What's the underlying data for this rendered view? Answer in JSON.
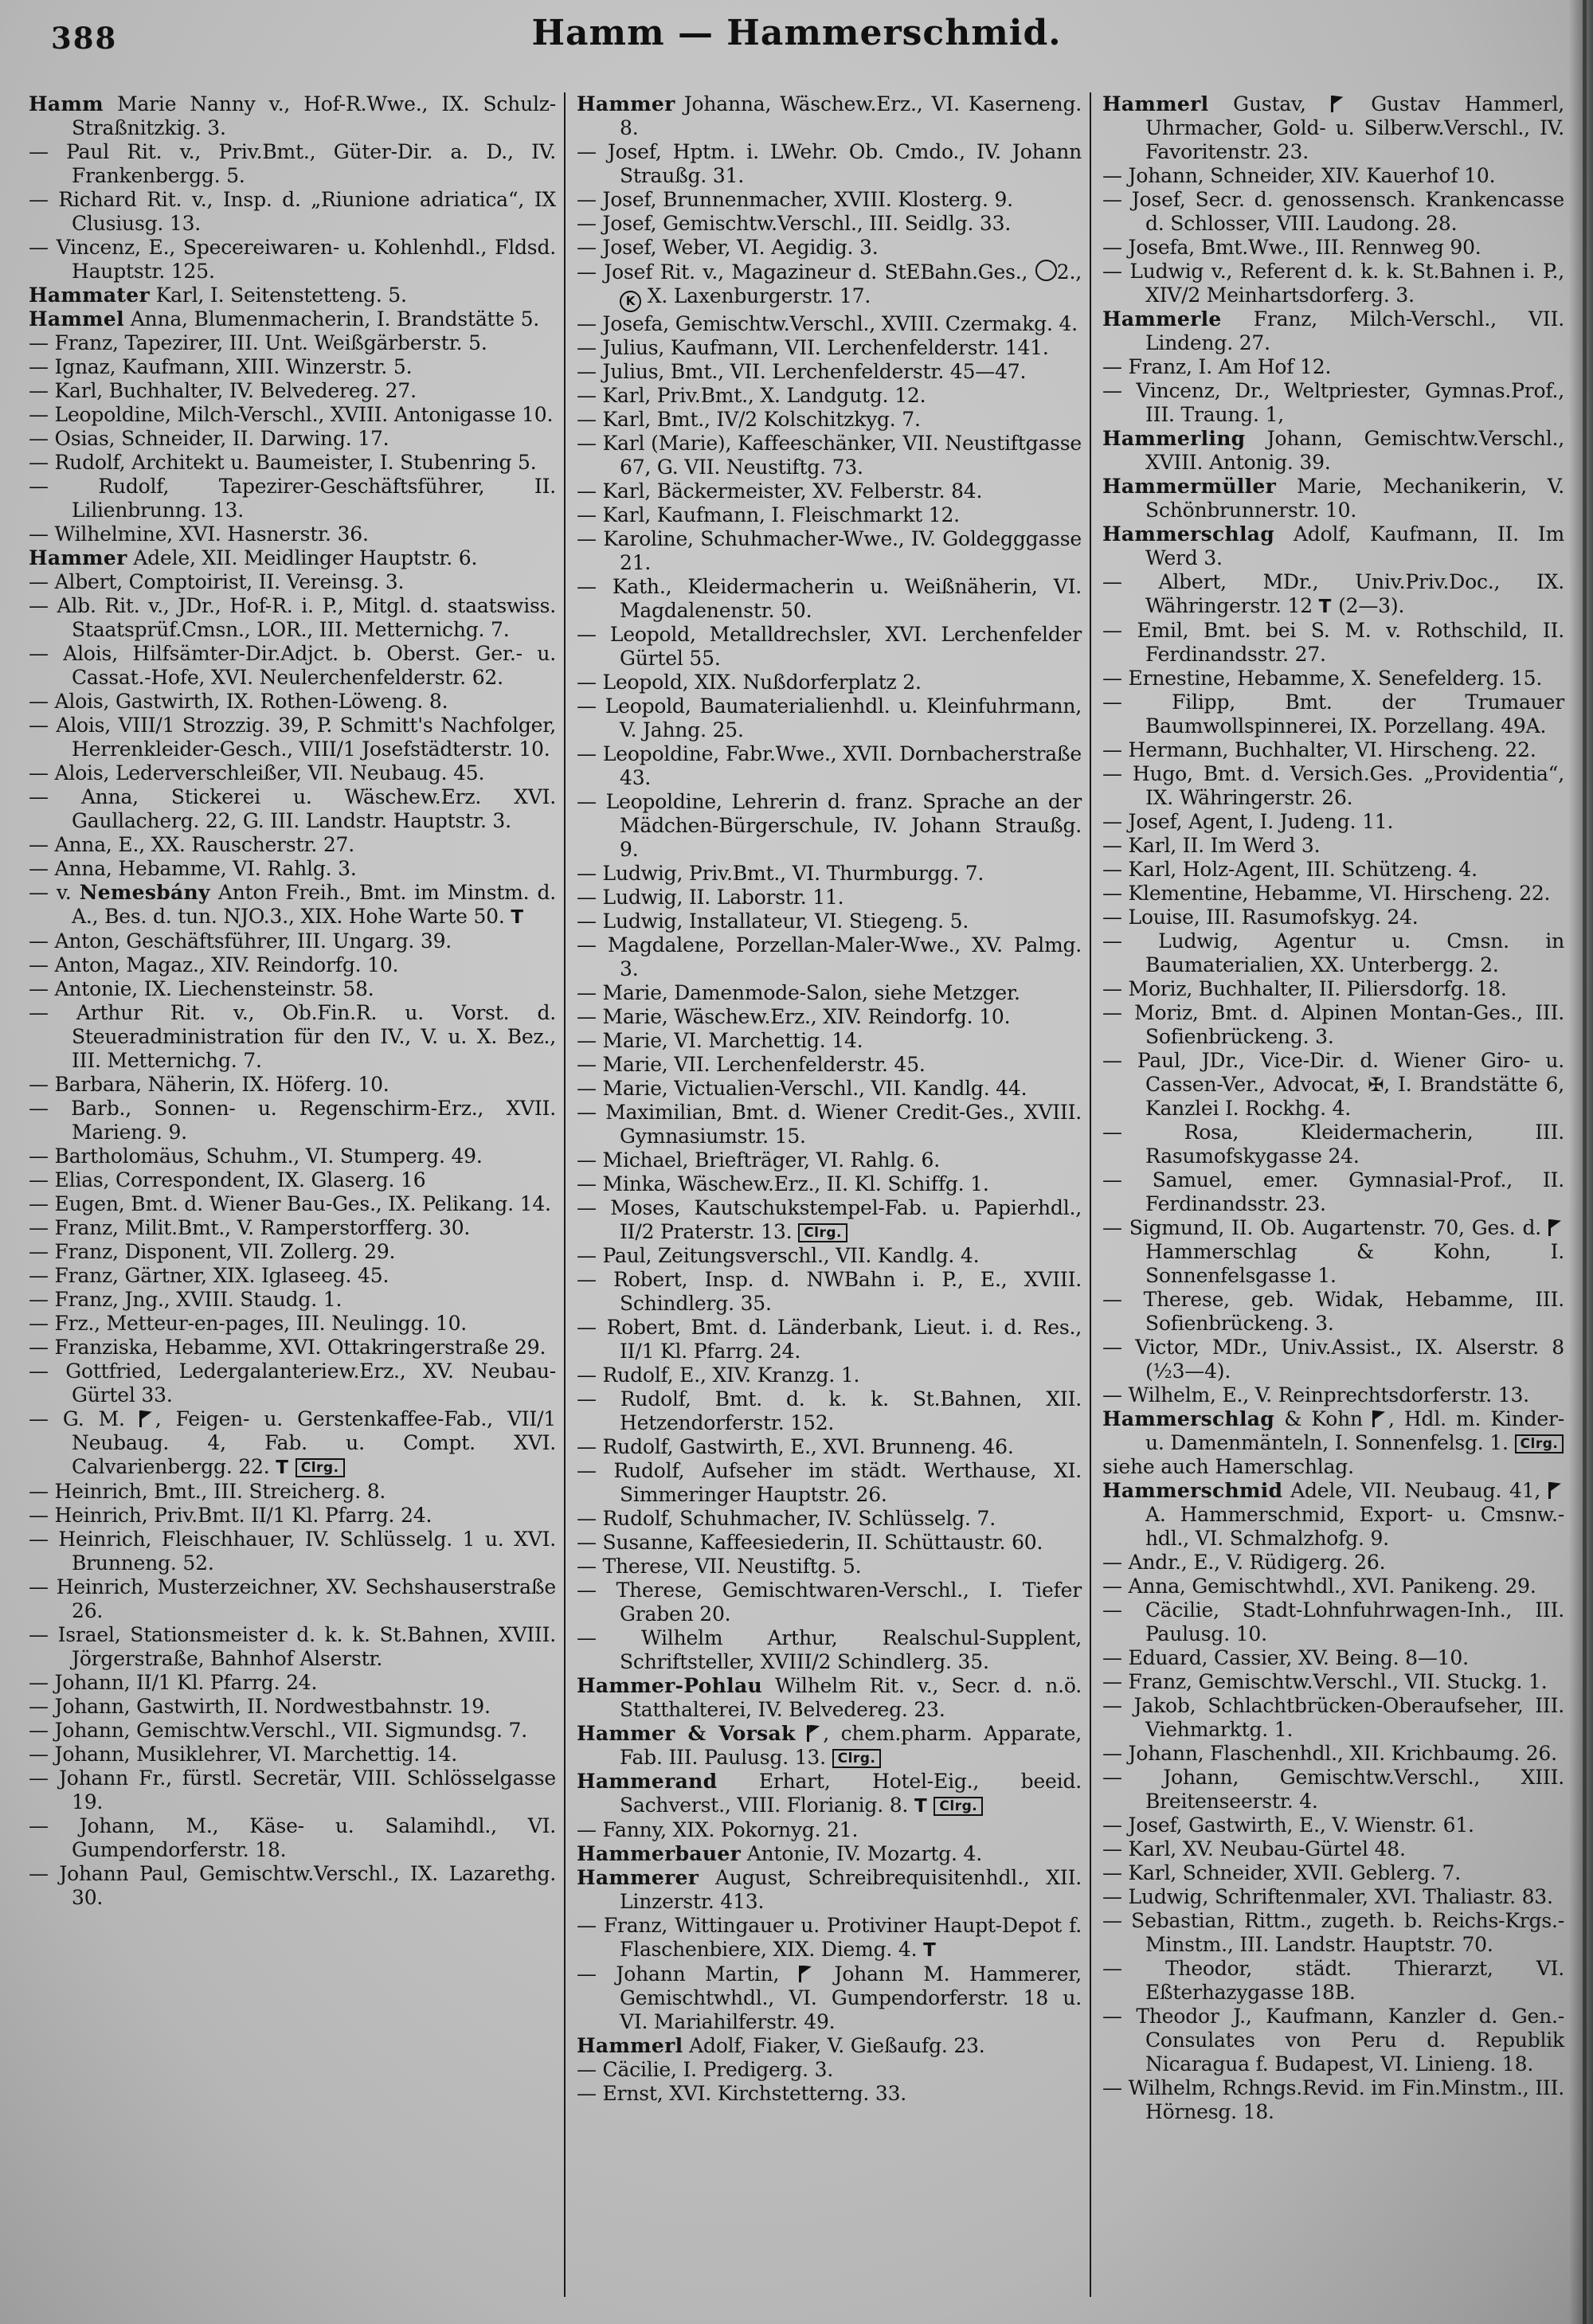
{
  "page": {
    "number": "388",
    "title": "Hamm — Hammerschmid."
  },
  "icons": {
    "telephone": "T",
    "clearing_badge": "Clrg.",
    "registered_firm_flag": "black pennant flag",
    "order_circle_k": "K in circle",
    "order_circle": "empty circle",
    "cross_decoration": "✠"
  },
  "columns": [
    {
      "entries": [
        {
          "lead": "Hamm",
          "text": "Marie Nanny v., Hof-R.Wwe., IX. Schulz-Straßnitzkig. 3."
        },
        {
          "dash": true,
          "text": "Paul Rit. v., Priv.Bmt., Güter-Dir. a. D., IV. Frankenbergg. 5."
        },
        {
          "dash": true,
          "text": "Richard Rit. v., Insp. d. „Riunione adriatica“, IX Clusiusg. 13."
        },
        {
          "dash": true,
          "text": "Vincenz, E., Specereiwaren- u. Kohlenhdl., Fldsd. Hauptstr. 125."
        },
        {
          "lead": "Hammater",
          "text": "Karl, I. Seitenstetteng. 5."
        },
        {
          "lead": "Hammel",
          "text": "Anna, Blumenmacherin, I. Brandstätte 5."
        },
        {
          "dash": true,
          "text": "Franz, Tapezirer, III. Unt. Weißgärberstr. 5."
        },
        {
          "dash": true,
          "text": "Ignaz, Kaufmann, XIII. Winzerstr. 5."
        },
        {
          "dash": true,
          "text": "Karl, Buchhalter, IV. Belvedereg. 27."
        },
        {
          "dash": true,
          "text": "Leopoldine, Milch-Verschl., XVIII. Antonigasse 10."
        },
        {
          "dash": true,
          "text": "Osias, Schneider, II. Darwing. 17."
        },
        {
          "dash": true,
          "text": "Rudolf, Architekt u. Baumeister, I. Stubenring 5."
        },
        {
          "dash": true,
          "text": "Rudolf, Tapezirer-Geschäftsführer, II. Lilienbrunng. 13."
        },
        {
          "dash": true,
          "text": "Wilhelmine, XVI. Hasnerstr. 36."
        },
        {
          "lead": "Hammer",
          "text": "Adele, XII. Meidlinger Hauptstr. 6."
        },
        {
          "dash": true,
          "text": "Albert, Comptoirist, II. Vereinsg. 3."
        },
        {
          "dash": true,
          "text": "Alb. Rit. v., JDr., Hof-R. i. P., Mitgl. d. staatswiss. Staatsprüf.Cmsn., LOR., III. Metternichg. 7."
        },
        {
          "dash": true,
          "text": "Alois, Hilfsämter-Dir.Adjct. b. Oberst. Ger.- u. Cassat.-Hofe, XVI. Neulerchenfelderstr. 62."
        },
        {
          "dash": true,
          "text": "Alois, Gastwirth, IX. Rothen-Löweng. 8."
        },
        {
          "dash": true,
          "text": "Alois, VIII/1 Strozzig. 39, P. Schmitt's Nachfolger, Herrenkleider-Gesch., VIII/1 Josefstädterstr. 10."
        },
        {
          "dash": true,
          "text": "Alois, Lederverschleißer, VII. Neubaug. 45."
        },
        {
          "dash": true,
          "text": "Anna, Stickerei u. Wäschew.Erz. XVI. Gaullacherg. 22, G. III. Landstr. Hauptstr. 3."
        },
        {
          "dash": true,
          "text": "Anna, E., XX. Rauscherstr. 27."
        },
        {
          "dash": true,
          "text": "Anna, Hebamme, VI. Rahlg. 3."
        },
        {
          "dash": true,
          "pre": "v. ",
          "lead": "Nemesbány",
          "text": "Anton Freih., Bmt. im Minstm. d. A., Bes. d. tun. NJO.3., XIX. Hohe Warte 50. {T}"
        },
        {
          "dash": true,
          "text": "Anton, Geschäftsführer, III. Ungarg. 39."
        },
        {
          "dash": true,
          "text": "Anton, Magaz., XIV. Reindorfg. 10."
        },
        {
          "dash": true,
          "text": "Antonie, IX. Liechensteinstr. 58."
        },
        {
          "dash": true,
          "text": "Arthur Rit. v., Ob.Fin.R. u. Vorst. d. Steueradministration für den IV., V. u. X. Bez., III. Metternichg. 7."
        },
        {
          "dash": true,
          "text": "Barbara, Näherin, IX. Höferg. 10."
        },
        {
          "dash": true,
          "text": "Barb., Sonnen- u. Regenschirm-Erz., XVII. Marieng. 9."
        },
        {
          "dash": true,
          "text": "Bartholomäus, Schuhm., VI. Stumperg. 49."
        },
        {
          "dash": true,
          "text": "Elias, Correspondent, IX. Glaserg. 16"
        },
        {
          "dash": true,
          "text": "Eugen, Bmt. d. Wiener Bau-Ges., IX. Pelikang. 14."
        },
        {
          "dash": true,
          "text": "Franz, Milit.Bmt., V. Ramperstorfferg. 30."
        },
        {
          "dash": true,
          "text": "Franz, Disponent, VII. Zollerg. 29."
        },
        {
          "dash": true,
          "text": "Franz, Gärtner, XIX. Iglaseeg. 45."
        },
        {
          "dash": true,
          "text": "Franz, Jng., XVIII. Staudg. 1."
        },
        {
          "dash": true,
          "text": "Frz., Metteur-en-pages, III. Neulingg. 10."
        },
        {
          "dash": true,
          "text": "Franziska, Hebamme, XVI. Ottakringerstraße 29."
        },
        {
          "dash": true,
          "text": "Gottfried, Ledergalanteriew.Erz., XV. Neubau-Gürtel 33."
        },
        {
          "dash": true,
          "text": "G. M. {F}, Feigen- u. Gerstenkaffee-Fab., VII/1 Neubaug. 4, Fab. u. Compt. XVI. Calvarienbergg. 22. {T} {C}"
        },
        {
          "dash": true,
          "text": "Heinrich, Bmt., III. Streicherg. 8."
        },
        {
          "dash": true,
          "text": "Heinrich, Priv.Bmt. II/1 Kl. Pfarrg. 24."
        },
        {
          "dash": true,
          "text": "Heinrich, Fleischhauer, IV. Schlüsselg. 1 u. XVI. Brunneng. 52."
        },
        {
          "dash": true,
          "text": "Heinrich, Musterzeichner, XV. Sechshauserstraße 26."
        },
        {
          "dash": true,
          "text": "Israel, Stationsmeister d. k. k. St.Bahnen, XVIII. Jörgerstraße, Bahnhof Alserstr."
        },
        {
          "dash": true,
          "text": "Johann, II/1 Kl. Pfarrg. 24."
        },
        {
          "dash": true,
          "text": "Johann, Gastwirth, II. Nordwestbahnstr. 19."
        },
        {
          "dash": true,
          "text": "Johann, Gemischtw.Verschl., VII. Sigmundsg. 7."
        },
        {
          "dash": true,
          "text": "Johann, Musiklehrer, VI. Marchettig. 14."
        },
        {
          "dash": true,
          "text": "Johann Fr., fürstl. Secretär, VIII. Schlösselgasse 19."
        },
        {
          "dash": true,
          "text": "Johann, M., Käse- u. Salamihdl., VI. Gumpendorferstr. 18."
        },
        {
          "dash": true,
          "text": "Johann Paul, Gemischtw.Verschl., IX. Lazarethg. 30."
        }
      ]
    },
    {
      "entries": [
        {
          "lead": "Hammer",
          "text": "Johanna, Wäschew.Erz., VI. Kaserneng. 8."
        },
        {
          "dash": true,
          "text": "Josef, Hptm. i. LWehr. Ob. Cmdo., IV. Johann Straußg. 31."
        },
        {
          "dash": true,
          "text": "Josef, Brunnenmacher, XVIII. Klosterg. 9."
        },
        {
          "dash": true,
          "text": "Josef, Gemischtw.Verschl., III. Seidlg. 33."
        },
        {
          "dash": true,
          "text": "Josef, Weber, VI. Aegidig. 3."
        },
        {
          "dash": true,
          "text": "Josef Rit. v., Magazineur d. StEBahn.Ges., {O}2., {K} X. Laxenburgerstr. 17."
        },
        {
          "dash": true,
          "text": "Josefa, Gemischtw.Verschl., XVIII. Czermakg. 4."
        },
        {
          "dash": true,
          "text": "Julius, Kaufmann, VII. Lerchenfelderstr. 141."
        },
        {
          "dash": true,
          "text": "Julius, Bmt., VII. Lerchenfelderstr. 45—47."
        },
        {
          "dash": true,
          "text": "Karl, Priv.Bmt., X. Landgutg. 12."
        },
        {
          "dash": true,
          "text": "Karl, Bmt., IV/2 Kolschitzkyg. 7."
        },
        {
          "dash": true,
          "text": "Karl (Marie), Kaffeeschänker, VII. Neustiftgasse 67, G. VII. Neustiftg. 73."
        },
        {
          "dash": true,
          "text": "Karl, Bäckermeister, XV. Felberstr. 84."
        },
        {
          "dash": true,
          "text": "Karl, Kaufmann, I. Fleischmarkt 12."
        },
        {
          "dash": true,
          "text": "Karoline, Schuhmacher-Wwe., IV. Goldegggasse 21."
        },
        {
          "dash": true,
          "text": "Kath., Kleidermacherin u. Weißnäherin, VI. Magdalenenstr. 50."
        },
        {
          "dash": true,
          "text": "Leopold, Metalldrechsler, XVI. Lerchenfelder Gürtel 55."
        },
        {
          "dash": true,
          "text": "Leopold, XIX. Nußdorferplatz 2."
        },
        {
          "dash": true,
          "text": "Leopold, Baumaterialienhdl. u. Kleinfuhrmann, V. Jahng. 25."
        },
        {
          "dash": true,
          "text": "Leopoldine, Fabr.Wwe., XVII. Dornbacherstraße 43."
        },
        {
          "dash": true,
          "text": "Leopoldine, Lehrerin d. franz. Sprache an der Mädchen-Bürgerschule, IV. Johann Straußg. 9."
        },
        {
          "dash": true,
          "text": "Ludwig, Priv.Bmt., VI. Thurmburgg. 7."
        },
        {
          "dash": true,
          "text": "Ludwig, II. Laborstr. 11."
        },
        {
          "dash": true,
          "text": "Ludwig, Installateur, VI. Stiegeng. 5."
        },
        {
          "dash": true,
          "text": "Magdalene, Porzellan-Maler-Wwe., XV. Palmg. 3."
        },
        {
          "dash": true,
          "text": "Marie, Damenmode-Salon, siehe Metzger."
        },
        {
          "dash": true,
          "text": "Marie, Wäschew.Erz., XIV. Reindorfg. 10."
        },
        {
          "dash": true,
          "text": "Marie, VI. Marchettig. 14."
        },
        {
          "dash": true,
          "text": "Marie, VII. Lerchenfelderstr. 45."
        },
        {
          "dash": true,
          "text": "Marie, Victualien-Verschl., VII. Kandlg. 44."
        },
        {
          "dash": true,
          "text": "Maximilian, Bmt. d. Wiener Credit-Ges., XVIII. Gymnasiumstr. 15."
        },
        {
          "dash": true,
          "text": "Michael, Briefträger, VI. Rahlg. 6."
        },
        {
          "dash": true,
          "text": "Minka, Wäschew.Erz., II. Kl. Schiffg. 1."
        },
        {
          "dash": true,
          "text": "Moses, Kautschukstempel-Fab. u. Papierhdl., II/2 Praterstr. 13. {C}"
        },
        {
          "dash": true,
          "text": "Paul, Zeitungsverschl., VII. Kandlg. 4."
        },
        {
          "dash": true,
          "text": "Robert, Insp. d. NWBahn i. P., E., XVIII. Schindlerg. 35."
        },
        {
          "dash": true,
          "text": "Robert, Bmt. d. Länderbank, Lieut. i. d. Res., II/1 Kl. Pfarrg. 24."
        },
        {
          "dash": true,
          "text": "Rudolf, E., XIV. Kranzg. 1."
        },
        {
          "dash": true,
          "text": "Rudolf, Bmt. d. k. k. St.Bahnen, XII. Hetzendorferstr. 152."
        },
        {
          "dash": true,
          "text": "Rudolf, Gastwirth, E., XVI. Brunneng. 46."
        },
        {
          "dash": true,
          "text": "Rudolf, Aufseher im städt. Werthause, XI. Simmeringer Hauptstr. 26."
        },
        {
          "dash": true,
          "text": "Rudolf, Schuhmacher, IV. Schlüsselg. 7."
        },
        {
          "dash": true,
          "text": "Susanne, Kaffeesiederin, II. Schüttaustr. 60."
        },
        {
          "dash": true,
          "text": "Therese, VII. Neustiftg. 5."
        },
        {
          "dash": true,
          "text": "Therese, Gemischtwaren-Verschl., I. Tiefer Graben 20."
        },
        {
          "dash": true,
          "text": "Wilhelm Arthur, Realschul-Supplent, Schriftsteller, XVIII/2 Schindlerg. 35."
        },
        {
          "lead": "Hammer-Pohlau",
          "text": "Wilhelm Rit. v., Secr. d. n.ö. Statthalterei, IV. Belvedereg. 23."
        },
        {
          "lead": "Hammer & Vorsak",
          "text": "{F}, chem.pharm. Apparate, Fab. III. Paulusg. 13. {C}"
        },
        {
          "lead": "Hammerand",
          "text": "Erhart, Hotel-Eig., beeid. Sachverst., VIII. Florianig. 8. {T} {C}"
        },
        {
          "dash": true,
          "text": "Fanny, XIX. Pokornyg. 21."
        },
        {
          "lead": "Hammerbauer",
          "text": "Antonie, IV. Mozartg. 4."
        },
        {
          "lead": "Hammerer",
          "text": "August, Schreibrequisitenhdl., XII. Linzerstr. 413."
        },
        {
          "dash": true,
          "text": "Franz, Wittingauer u. Protiviner Haupt-Depot f. Flaschenbiere, XIX. Diemg. 4. {T}"
        },
        {
          "dash": true,
          "text": "Johann Martin, {F} Johann M. Hammerer, Gemischtwhdl., VI. Gumpendorferstr. 18 u. VI. Mariahilferstr. 49."
        },
        {
          "lead": "Hammerl",
          "text": "Adolf, Fiaker, V. Gießaufg. 23."
        },
        {
          "dash": true,
          "text": "Cäcilie, I. Predigerg. 3."
        },
        {
          "dash": true,
          "text": "Ernst, XVI. Kirchstetterng. 33."
        }
      ]
    },
    {
      "entries": [
        {
          "lead": "Hammerl",
          "text": "Gustav, {F} Gustav Hammerl, Uhrmacher, Gold- u. Silberw.Verschl., IV. Favoritenstr. 23."
        },
        {
          "dash": true,
          "text": "Johann, Schneider, XIV. Kauerhof 10."
        },
        {
          "dash": true,
          "text": "Josef, Secr. d. genossensch. Krankencasse d. Schlosser, VIII. Laudong. 28."
        },
        {
          "dash": true,
          "text": "Josefa, Bmt.Wwe., III. Rennweg 90."
        },
        {
          "dash": true,
          "text": "Ludwig v., Referent d. k. k. St.Bahnen i. P., XIV/2 Meinhartsdorferg. 3."
        },
        {
          "lead": "Hammerle",
          "text": "Franz, Milch-Verschl., VII. Lindeng. 27."
        },
        {
          "dash": true,
          "text": "Franz, I. Am Hof 12."
        },
        {
          "dash": true,
          "text": "Vincenz, Dr., Weltpriester, Gymnas.Prof., III. Traung. 1,"
        },
        {
          "lead": "Hammerling",
          "text": "Johann, Gemischtw.Verschl., XVIII. Antonig. 39."
        },
        {
          "lead": "Hammermüller",
          "text": "Marie, Mechanikerin, V. Schönbrunnerstr. 10."
        },
        {
          "lead": "Hammerschlag",
          "text": "Adolf, Kaufmann, II. Im Werd 3."
        },
        {
          "dash": true,
          "text": "Albert, MDr., Univ.Priv.Doc., IX. Währingerstr. 12 {T} (2—3)."
        },
        {
          "dash": true,
          "text": "Emil, Bmt. bei S. M. v. Rothschild, II. Ferdinandsstr. 27."
        },
        {
          "dash": true,
          "text": "Ernestine, Hebamme, X. Senefelderg. 15."
        },
        {
          "dash": true,
          "text": "Filipp, Bmt. der Trumauer Baumwollspinnerei, IX. Porzellang. 49A."
        },
        {
          "dash": true,
          "text": "Hermann, Buchhalter, VI. Hirscheng. 22."
        },
        {
          "dash": true,
          "text": "Hugo, Bmt. d. Versich.Ges. „Providentia“, IX. Währingerstr. 26."
        },
        {
          "dash": true,
          "text": "Josef, Agent, I. Judeng. 11."
        },
        {
          "dash": true,
          "text": "Karl, II. Im Werd 3."
        },
        {
          "dash": true,
          "text": "Karl, Holz-Agent, III. Schützeng. 4."
        },
        {
          "dash": true,
          "text": "Klementine, Hebamme, VI. Hirscheng. 22."
        },
        {
          "dash": true,
          "text": "Louise, III. Rasumofskyg. 24."
        },
        {
          "dash": true,
          "text": "Ludwig, Agentur u. Cmsn. in Baumaterialien, XX. Unterbergg. 2."
        },
        {
          "dash": true,
          "text": "Moriz, Buchhalter, II. Piliersdorfg. 18."
        },
        {
          "dash": true,
          "text": "Moriz, Bmt. d. Alpinen Montan-Ges., III. Sofienbrückeng. 3."
        },
        {
          "dash": true,
          "text": "Paul, JDr., Vice-Dir. d. Wiener Giro- u. Cassen-Ver., Advocat, {X}, I. Brandstätte 6, Kanzlei I. Rockhg. 4."
        },
        {
          "dash": true,
          "text": "Rosa, Kleidermacherin, III. Rasumofskygasse 24."
        },
        {
          "dash": true,
          "text": "Samuel, emer. Gymnasial-Prof., II. Ferdinandsstr. 23."
        },
        {
          "dash": true,
          "text": "Sigmund, II. Ob. Augartenstr. 70, Ges. d. {F} Hammerschlag & Kohn, I. Sonnenfelsgasse 1."
        },
        {
          "dash": true,
          "text": "Therese, geb. Widak, Hebamme, III. Sofienbrückeng. 3."
        },
        {
          "dash": true,
          "text": "Victor, MDr., Univ.Assist., IX. Alserstr. 8 (½3—4)."
        },
        {
          "dash": true,
          "text": "Wilhelm, E., V. Reinprechtsdorferstr. 13."
        },
        {
          "lead": "Hammerschlag",
          "text": "& Kohn {F}, Hdl. m. Kinder- u. Damenmänteln, I. Sonnenfelsg. 1. {C}"
        },
        {
          "text": "siehe auch Hamerschlag."
        },
        {
          "lead": "Hammerschmid",
          "text": "Adele, VII. Neubaug. 41, {F} A. Hammerschmid, Export- u. Cmsnw.-hdl., VI. Schmalzhofg. 9."
        },
        {
          "dash": true,
          "text": "Andr., E., V. Rüdigerg. 26."
        },
        {
          "dash": true,
          "text": "Anna, Gemischtwhdl., XVI. Panikeng. 29."
        },
        {
          "dash": true,
          "text": "Cäcilie, Stadt-Lohnfuhrwagen-Inh., III. Paulusg. 10."
        },
        {
          "dash": true,
          "text": "Eduard, Cassier, XV. Being. 8—10."
        },
        {
          "dash": true,
          "text": "Franz, Gemischtw.Verschl., VII. Stuckg. 1."
        },
        {
          "dash": true,
          "text": "Jakob, Schlachtbrücken-Oberaufseher, III. Viehmarktg. 1."
        },
        {
          "dash": true,
          "text": "Johann, Flaschenhdl., XII. Krichbaumg. 26."
        },
        {
          "dash": true,
          "text": "Johann, Gemischtw.Verschl., XIII. Breitenseerstr. 4."
        },
        {
          "dash": true,
          "text": "Josef, Gastwirth, E., V. Wienstr. 61."
        },
        {
          "dash": true,
          "text": "Karl, XV. Neubau-Gürtel 48."
        },
        {
          "dash": true,
          "text": "Karl, Schneider, XVII. Geblerg. 7."
        },
        {
          "dash": true,
          "text": "Ludwig, Schriftenmaler, XVI. Thaliastr. 83."
        },
        {
          "dash": true,
          "text": "Sebastian, Rittm., zugeth. b. Reichs-Krgs.-Minstm., III. Landstr. Hauptstr. 70."
        },
        {
          "dash": true,
          "text": "Theodor, städt. Thierarzt, VI. Eßterhazygasse 18B."
        },
        {
          "dash": true,
          "text": "Theodor J., Kaufmann, Kanzler d. Gen.-Consulates von Peru d. Republik Nicaragua f. Budapest, VI. Linieng. 18."
        },
        {
          "dash": true,
          "text": "Wilhelm, Rchngs.Revid. im Fin.Minstm., III. Hörnesg. 18."
        }
      ]
    }
  ]
}
